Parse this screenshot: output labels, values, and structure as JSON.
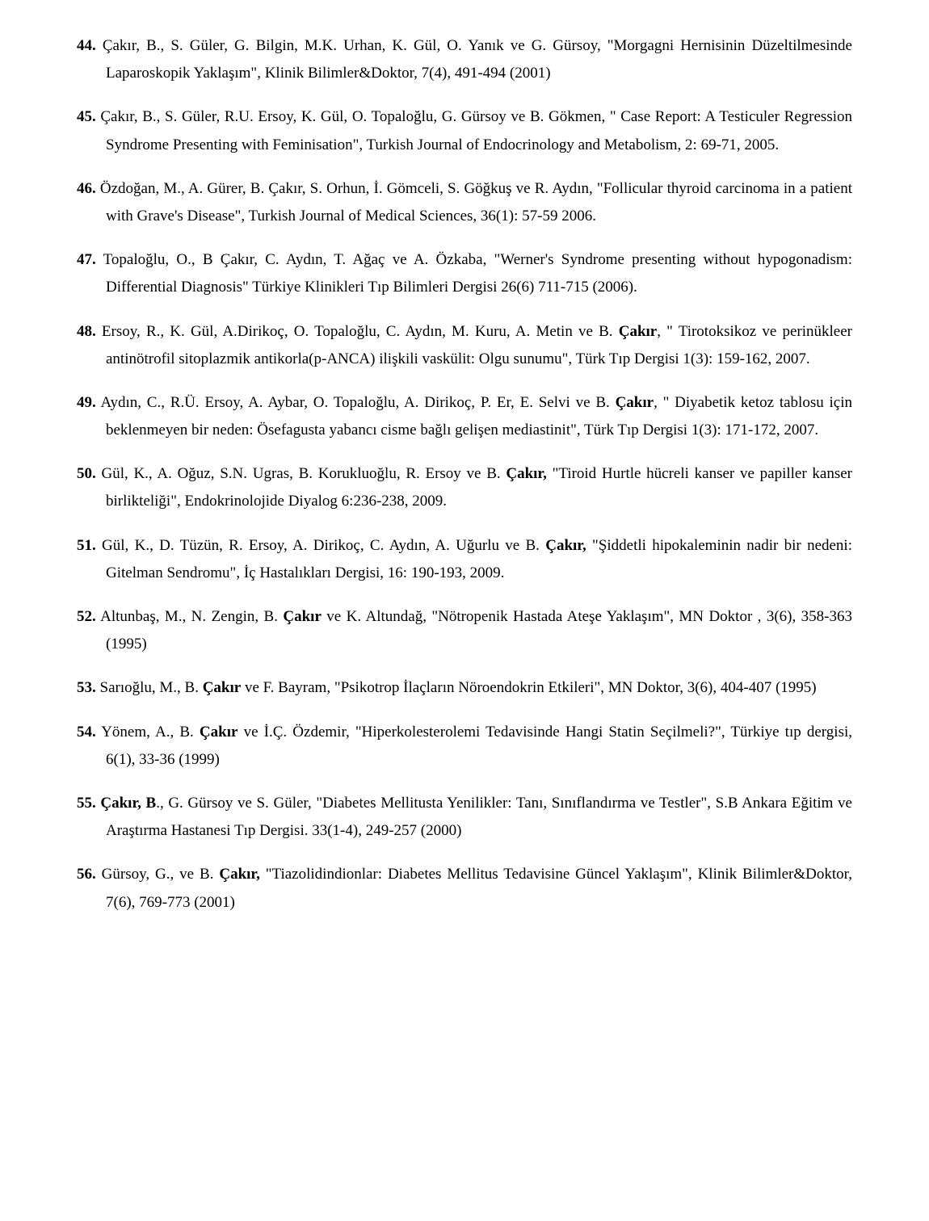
{
  "colors": {
    "text": "#000000",
    "background": "#ffffff"
  },
  "typography": {
    "family": "Times New Roman",
    "size_pt": 12,
    "line_height": 1.8,
    "align": "justify"
  },
  "entries": [
    {
      "num": "44.",
      "html": "<span class=\"num\">44.</span> Çakır, B., S. Güler, G. Bilgin, M.K. Urhan, K. Gül, O. Yanık ve G. Gürsoy, \"Morgagni Hernisinin Düzeltilmesinde Laparoskopik Yaklaşım\", Klinik Bilimler&amp;Doktor, 7(4), 491-494 (2001)"
    },
    {
      "num": "45.",
      "html": "<span class=\"num\">45.</span> Çakır, B., S. Güler, R.U. Ersoy, K. Gül, O. Topaloğlu, G. Gürsoy ve B. Gökmen, \" Case Report: A Testiculer Regression Syndrome Presenting with Feminisation\", Turkish Journal of Endocrinology and Metabolism, 2: 69-71, 2005."
    },
    {
      "num": "46.",
      "html": "<span class=\"num\">46.</span> Özdoğan, M., A. Gürer, B. Çakır, S. Orhun, İ. Gömceli, S. Göğkuş ve R. Aydın, \"Follicular thyroid carcinoma in a patient with Grave's Disease\", Turkish Journal of Medical Sciences, 36(1): 57-59 2006."
    },
    {
      "num": "47.",
      "html": "<span class=\"num\">47.</span> Topaloğlu, O., B Çakır, C. Aydın, T. Ağaç ve A. Özkaba, \"Werner's Syndrome presenting without hypogonadism: Differential Diagnosis\" Türkiye Klinikleri Tıp Bilimleri Dergisi 26(6) 711-715 (2006)."
    },
    {
      "num": "48.",
      "html": "<span class=\"num\">48.</span> Ersoy, R., K. Gül, A.Dirikoç, O. Topaloğlu, C. Aydın, M. Kuru, A. Metin ve B. <b>Çakır</b>, \" Tirotoksikoz ve perinükleer antinötrofil sitoplazmik antikorla(p-ANCA) ilişkili vaskülit: Olgu sunumu\", Türk Tıp Dergisi 1(3): 159-162, 2007."
    },
    {
      "num": "49.",
      "html": "<span class=\"num\">49.</span> Aydın, C., R.Ü. Ersoy, A. Aybar, O. Topaloğlu, A. Dirikoç, P. Er, E. Selvi ve B. <b>Çakır</b>, \" Diyabetik ketoz tablosu için beklenmeyen bir neden: Ösefagusta yabancı cisme bağlı gelişen mediastinit\", Türk Tıp Dergisi 1(3): 171-172, 2007."
    },
    {
      "num": "50.",
      "html": "<span class=\"num\">50.</span> Gül, K., A. Oğuz, S.N. Ugras, B. Korukluoğlu, R. Ersoy ve B. <b>Çakır,</b> \"Tiroid Hurtle hücreli kanser ve papiller kanser birlikteliği\", Endokrinolojide Diyalog 6:236-238, 2009."
    },
    {
      "num": "51.",
      "html": "<span class=\"num\">51.</span> Gül, K., D. Tüzün, R. Ersoy, A. Dirikoç, C. Aydın, A. Uğurlu ve B. <b>Çakır,</b> \"Şiddetli hipokaleminin nadir bir nedeni: Gitelman Sendromu\", İç Hastalıkları Dergisi, 16: 190-193, 2009."
    },
    {
      "num": "52.",
      "html": "<span class=\"num\">52.</span> Altunbaş, M.,  N. Zengin,  B. <b>Çakır</b> ve K. Altundağ,  \"Nötropenik Hastada Ateşe Yaklaşım\", MN Doktor , 3(6), 358-363  (1995)"
    },
    {
      "num": "53.",
      "html": "<span class=\"num\">53.</span> Sarıoğlu, M., B. <b>Çakır</b> ve F. Bayram, \"Psikotrop İlaçların Nöroendokrin Etkileri\",  MN Doktor,  3(6), 404-407 (1995)"
    },
    {
      "num": "54.",
      "html": "<span class=\"num\">54.</span> Yönem, A., B. <b>Çakır</b> ve İ.Ç. Özdemir, \"Hiperkolesterolemi Tedavisinde Hangi Statin Seçilmeli?\", Türkiye tıp dergisi, 6(1), 33-36 (1999)"
    },
    {
      "num": "55.",
      "html": "<span class=\"num\">55.</span> <b>Çakır, B</b>., G. Gürsoy ve S. Güler, \"Diabetes Mellitusta Yenilikler: Tanı, Sınıflandırma ve Testler\", S.B Ankara Eğitim ve Araştırma Hastanesi Tıp Dergisi. 33(1-4), 249-257 (2000)"
    },
    {
      "num": "56.",
      "html": "<span class=\"num\">56.</span> Gürsoy, G., ve B. <b>Çakır,</b> \"Tiazolidindionlar: Diabetes Mellitus Tedavisine Güncel Yaklaşım\", Klinik Bilimler&amp;Doktor, 7(6), 769-773 (2001)"
    }
  ]
}
